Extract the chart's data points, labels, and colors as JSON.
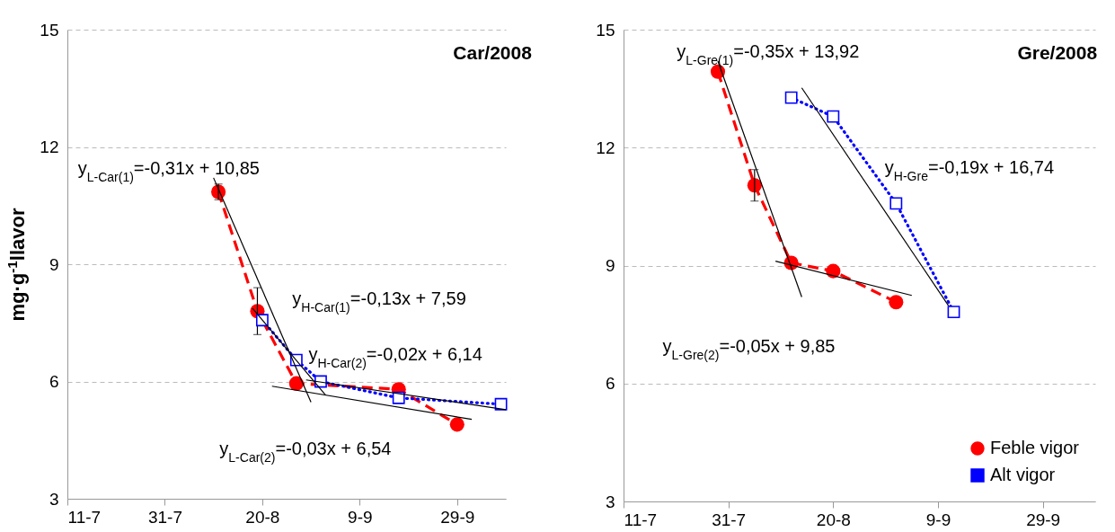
{
  "chart_data": [
    {
      "type": "line",
      "title": "Car/2008",
      "ylabel": "mg·g$^{-1}$llavor",
      "xlim": [
        "2008-07-11",
        "2008-10-09"
      ],
      "xticks": [
        {
          "value": "2008-07-11",
          "label": "11-7"
        },
        {
          "value": "2008-07-31",
          "label": "31-7"
        },
        {
          "value": "2008-08-20",
          "label": "20-8"
        },
        {
          "value": "2008-09-09",
          "label": "9-9"
        },
        {
          "value": "2008-09-29",
          "label": "29-9"
        }
      ],
      "ylim": [
        3,
        15
      ],
      "yticks": [
        3,
        6,
        9,
        12,
        15
      ],
      "grid": "y",
      "legend": false,
      "series": [
        {
          "color": "#ff0000",
          "x": [
            "2008-08-11",
            "2008-08-19",
            "2008-08-27",
            "2008-09-17",
            "2008-09-29"
          ],
          "values": [
            10.85,
            7.8,
            5.95,
            5.8,
            4.9
          ],
          "errors": [
            0.2,
            0.6,
            null,
            null,
            null
          ],
          "marker": "circle",
          "line_style": "dashed"
        },
        {
          "color": "#0000ff",
          "x": [
            "2008-08-20",
            "2008-08-27",
            "2008-09-01",
            "2008-09-17",
            "2008-10-08"
          ],
          "values": [
            7.57,
            6.55,
            6.0,
            5.58,
            5.42
          ],
          "marker": "square",
          "line_style": "dotted"
        },
        {
          "type": "line",
          "color": "#000000",
          "x": [
            "2008-08-10",
            "2008-08-30"
          ],
          "values": [
            11.21,
            5.47
          ],
          "marker": "none",
          "line_style": "solid"
        },
        {
          "type": "line",
          "color": "#000000",
          "x": [
            "2008-08-18",
            "2008-09-02"
          ],
          "values": [
            7.87,
            5.65
          ],
          "marker": "none",
          "line_style": "solid"
        },
        {
          "type": "line",
          "color": "#000000",
          "x": [
            "2008-08-22",
            "2008-10-02"
          ],
          "values": [
            5.88,
            5.03
          ],
          "marker": "none",
          "line_style": "solid"
        },
        {
          "type": "line",
          "color": "#000000",
          "x": [
            "2008-08-29",
            "2008-10-09"
          ],
          "values": [
            6.04,
            5.28
          ],
          "marker": "none",
          "line_style": "solid"
        }
      ],
      "annotations": [
        "y$_{L-Car(1)}$=-0,31x + 10,85",
        "y$_{H-Car(1)}$=-0,13x + 7,59",
        "y$_{H-Car(2)}$=-0,02x + 6,14",
        "y$_{L-Car(2)}$=-0,03x + 6,54"
      ]
    },
    {
      "type": "line",
      "title": "Gre/2008",
      "xlim": [
        "2008-07-11",
        "2008-10-09"
      ],
      "xticks": [
        {
          "value": "2008-07-11",
          "label": "11-7"
        },
        {
          "value": "2008-07-31",
          "label": "31-7"
        },
        {
          "value": "2008-08-20",
          "label": "20-8"
        },
        {
          "value": "2008-09-09",
          "label": "9-9"
        },
        {
          "value": "2008-09-29",
          "label": "29-9"
        }
      ],
      "ylim": [
        3,
        15
      ],
      "yticks": [
        3,
        6,
        9,
        12,
        15
      ],
      "grid": "y",
      "legend": "bottom right",
      "series": [
        {
          "name": "Feble vigor",
          "color": "#ff0000",
          "x": [
            "2008-07-29",
            "2008-08-05",
            "2008-08-12",
            "2008-08-20",
            "2008-09-01"
          ],
          "values": [
            13.93,
            11.04,
            9.07,
            8.86,
            8.07
          ],
          "errors": [
            null,
            0.4,
            null,
            null,
            null
          ],
          "marker": "circle",
          "line_style": "dashed"
        },
        {
          "name": "Alt vigor",
          "color": "#0000ff",
          "x": [
            "2008-08-12",
            "2008-08-20",
            "2008-09-01",
            "2008-09-12"
          ],
          "values": [
            13.27,
            12.79,
            10.58,
            7.82
          ],
          "marker": "square",
          "line_style": "dotted"
        },
        {
          "type": "line",
          "color": "#000000",
          "x": [
            "2008-07-29",
            "2008-08-14"
          ],
          "values": [
            14.2,
            8.2
          ],
          "marker": "none",
          "line_style": "solid"
        },
        {
          "type": "line",
          "color": "#000000",
          "x": [
            "2008-08-09",
            "2008-09-04"
          ],
          "values": [
            9.11,
            8.24
          ],
          "marker": "none",
          "line_style": "solid"
        },
        {
          "type": "line",
          "color": "#000000",
          "x": [
            "2008-08-14",
            "2008-09-11"
          ],
          "values": [
            13.52,
            7.98
          ],
          "marker": "none",
          "line_style": "solid"
        }
      ],
      "annotations": [
        "y$_{L-Gre(1)}$=-0,35x + 13,92",
        "y$_{H-Gre}$=-0,19x + 16,74",
        "y$_{L-Gre(2)}$=-0,05x + 9,85"
      ]
    }
  ]
}
